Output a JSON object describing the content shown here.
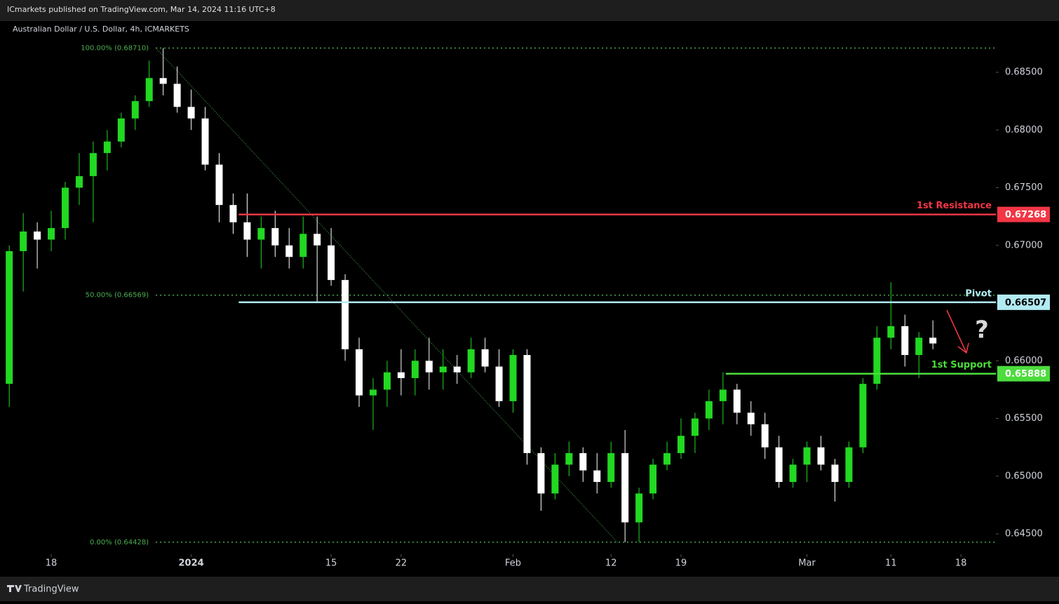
{
  "header": {
    "publisher": "ICmarkets published on TradingView.com, Mar 14, 2024 11:16 UTC+8",
    "footer": "TradingView"
  },
  "chart_data": {
    "type": "candlestick",
    "title": "Australian Dollar / U.S. Dollar, 4h, ICMARKETS",
    "up_color": "#22d822",
    "down_color": "#ffffff",
    "x": [
      -3,
      -2,
      -1,
      0,
      1,
      2,
      3,
      4,
      5,
      6,
      7,
      8,
      9,
      10,
      11,
      12,
      13,
      14,
      15,
      16,
      17,
      18,
      19,
      20,
      21,
      22,
      23,
      24,
      25,
      26,
      27,
      28,
      29,
      30,
      31,
      32,
      33,
      34,
      35,
      36,
      37,
      38,
      39,
      40,
      41,
      42,
      43,
      44,
      45,
      46,
      47,
      48,
      49,
      50,
      51,
      52,
      53,
      54,
      55,
      56,
      57,
      58,
      59,
      60,
      61,
      62,
      63
    ],
    "open": [
      0.658,
      0.6695,
      0.6712,
      0.6705,
      0.6715,
      0.675,
      0.676,
      0.678,
      0.679,
      0.681,
      0.6825,
      0.6845,
      0.684,
      0.682,
      0.681,
      0.677,
      0.6735,
      0.672,
      0.6705,
      0.6715,
      0.67,
      0.669,
      0.671,
      0.67,
      0.667,
      0.661,
      0.657,
      0.6575,
      0.659,
      0.6585,
      0.66,
      0.659,
      0.6595,
      0.659,
      0.661,
      0.6595,
      0.6565,
      0.6605,
      0.652,
      0.6485,
      0.651,
      0.652,
      0.6505,
      0.6495,
      0.652,
      0.646,
      0.6485,
      0.651,
      0.652,
      0.6535,
      0.655,
      0.6565,
      0.6575,
      0.6555,
      0.6545,
      0.6525,
      0.6495,
      0.651,
      0.6525,
      0.651,
      0.6495,
      0.6525,
      0.658,
      0.662,
      0.663,
      0.6605,
      0.662
    ],
    "high": [
      0.67,
      0.6728,
      0.672,
      0.673,
      0.6755,
      0.678,
      0.679,
      0.68,
      0.6815,
      0.683,
      0.686,
      0.6871,
      0.6855,
      0.6835,
      0.682,
      0.678,
      0.6745,
      0.6745,
      0.6725,
      0.673,
      0.6715,
      0.6725,
      0.6725,
      0.6715,
      0.6675,
      0.662,
      0.6585,
      0.66,
      0.661,
      0.661,
      0.662,
      0.661,
      0.6605,
      0.662,
      0.662,
      0.661,
      0.661,
      0.661,
      0.6525,
      0.652,
      0.653,
      0.6525,
      0.652,
      0.653,
      0.654,
      0.649,
      0.6515,
      0.653,
      0.655,
      0.6555,
      0.6575,
      0.659,
      0.658,
      0.6565,
      0.6555,
      0.6535,
      0.6515,
      0.653,
      0.6535,
      0.6515,
      0.653,
      0.6585,
      0.663,
      0.6668,
      0.664,
      0.6625,
      0.6635
    ],
    "low": [
      0.656,
      0.666,
      0.668,
      0.6695,
      0.6705,
      0.6735,
      0.672,
      0.6765,
      0.6785,
      0.68,
      0.682,
      0.683,
      0.6815,
      0.68,
      0.6765,
      0.672,
      0.671,
      0.669,
      0.668,
      0.669,
      0.668,
      0.668,
      0.665,
      0.6665,
      0.66,
      0.656,
      0.654,
      0.656,
      0.657,
      0.657,
      0.6575,
      0.6575,
      0.658,
      0.6585,
      0.659,
      0.656,
      0.6555,
      0.651,
      0.647,
      0.648,
      0.65,
      0.6495,
      0.6485,
      0.649,
      0.64428,
      0.64428,
      0.648,
      0.6505,
      0.6515,
      0.652,
      0.654,
      0.6545,
      0.6545,
      0.6535,
      0.6515,
      0.649,
      0.649,
      0.6495,
      0.6505,
      0.6478,
      0.649,
      0.652,
      0.6575,
      0.661,
      0.6595,
      0.6585,
      0.661
    ],
    "close": [
      0.6695,
      0.6712,
      0.6705,
      0.6715,
      0.675,
      0.676,
      0.678,
      0.679,
      0.681,
      0.6825,
      0.6845,
      0.684,
      0.682,
      0.681,
      0.677,
      0.6735,
      0.672,
      0.6705,
      0.6715,
      0.67,
      0.669,
      0.671,
      0.67,
      0.667,
      0.661,
      0.657,
      0.6575,
      0.659,
      0.6585,
      0.66,
      0.659,
      0.6595,
      0.659,
      0.661,
      0.6595,
      0.6565,
      0.6605,
      0.652,
      0.6485,
      0.651,
      0.652,
      0.6505,
      0.6495,
      0.652,
      0.646,
      0.6485,
      0.651,
      0.652,
      0.6535,
      0.655,
      0.6565,
      0.6575,
      0.6555,
      0.6545,
      0.6525,
      0.6495,
      0.651,
      0.6525,
      0.651,
      0.6495,
      0.6525,
      0.658,
      0.662,
      0.663,
      0.6605,
      0.662,
      0.6615
    ],
    "xlim": [
      -3.16,
      67.5
    ],
    "xticks": [
      {
        "value": 0,
        "label": "18"
      },
      {
        "value": 10,
        "label": "2024"
      },
      {
        "value": 20,
        "label": "15"
      },
      {
        "value": 25,
        "label": "22"
      },
      {
        "value": 33,
        "label": "Feb"
      },
      {
        "value": 40,
        "label": "12"
      },
      {
        "value": 45,
        "label": "19"
      },
      {
        "value": 54,
        "label": "Mar"
      },
      {
        "value": 60,
        "label": "11"
      },
      {
        "value": 65,
        "label": "18"
      }
    ],
    "ylim": [
      0.64324,
      0.68944
    ],
    "yticks": [
      {
        "value": 0.645,
        "label": "0.64500"
      },
      {
        "value": 0.65,
        "label": "0.65000"
      },
      {
        "value": 0.655,
        "label": "0.65500"
      },
      {
        "value": 0.66,
        "label": "0.66000"
      },
      {
        "value": 0.665,
        "label": "0.66500"
      },
      {
        "value": 0.67,
        "label": "0.67000"
      },
      {
        "value": 0.675,
        "label": "0.67500"
      },
      {
        "value": 0.68,
        "label": "0.68000"
      },
      {
        "value": 0.685,
        "label": "0.68500"
      }
    ],
    "levels": [
      {
        "name": "1st Resistance",
        "value": 0.67268,
        "color": "#f23645",
        "x_start": 13.4
      },
      {
        "name": "Pivot",
        "value": 0.66507,
        "color": "#b2ebf2",
        "x_start": 13.4
      },
      {
        "name": "1st Support",
        "value": 0.65888,
        "color": "#4cdc3c",
        "x_start": 48.2
      }
    ],
    "fib_color": "#4caf50",
    "fib_x_start": 7.47,
    "fib_levels": [
      {
        "value": 0.6871,
        "label": "100.00% (0.68710)"
      },
      {
        "value": 0.66569,
        "label": "50.00% (0.66569)"
      },
      {
        "value": 0.64428,
        "label": "0.00% (0.64428)"
      }
    ],
    "trend_line": {
      "x": [
        7.47,
        40.45
      ],
      "y": [
        0.6871,
        0.64428
      ]
    },
    "annotations": [
      "?"
    ]
  }
}
